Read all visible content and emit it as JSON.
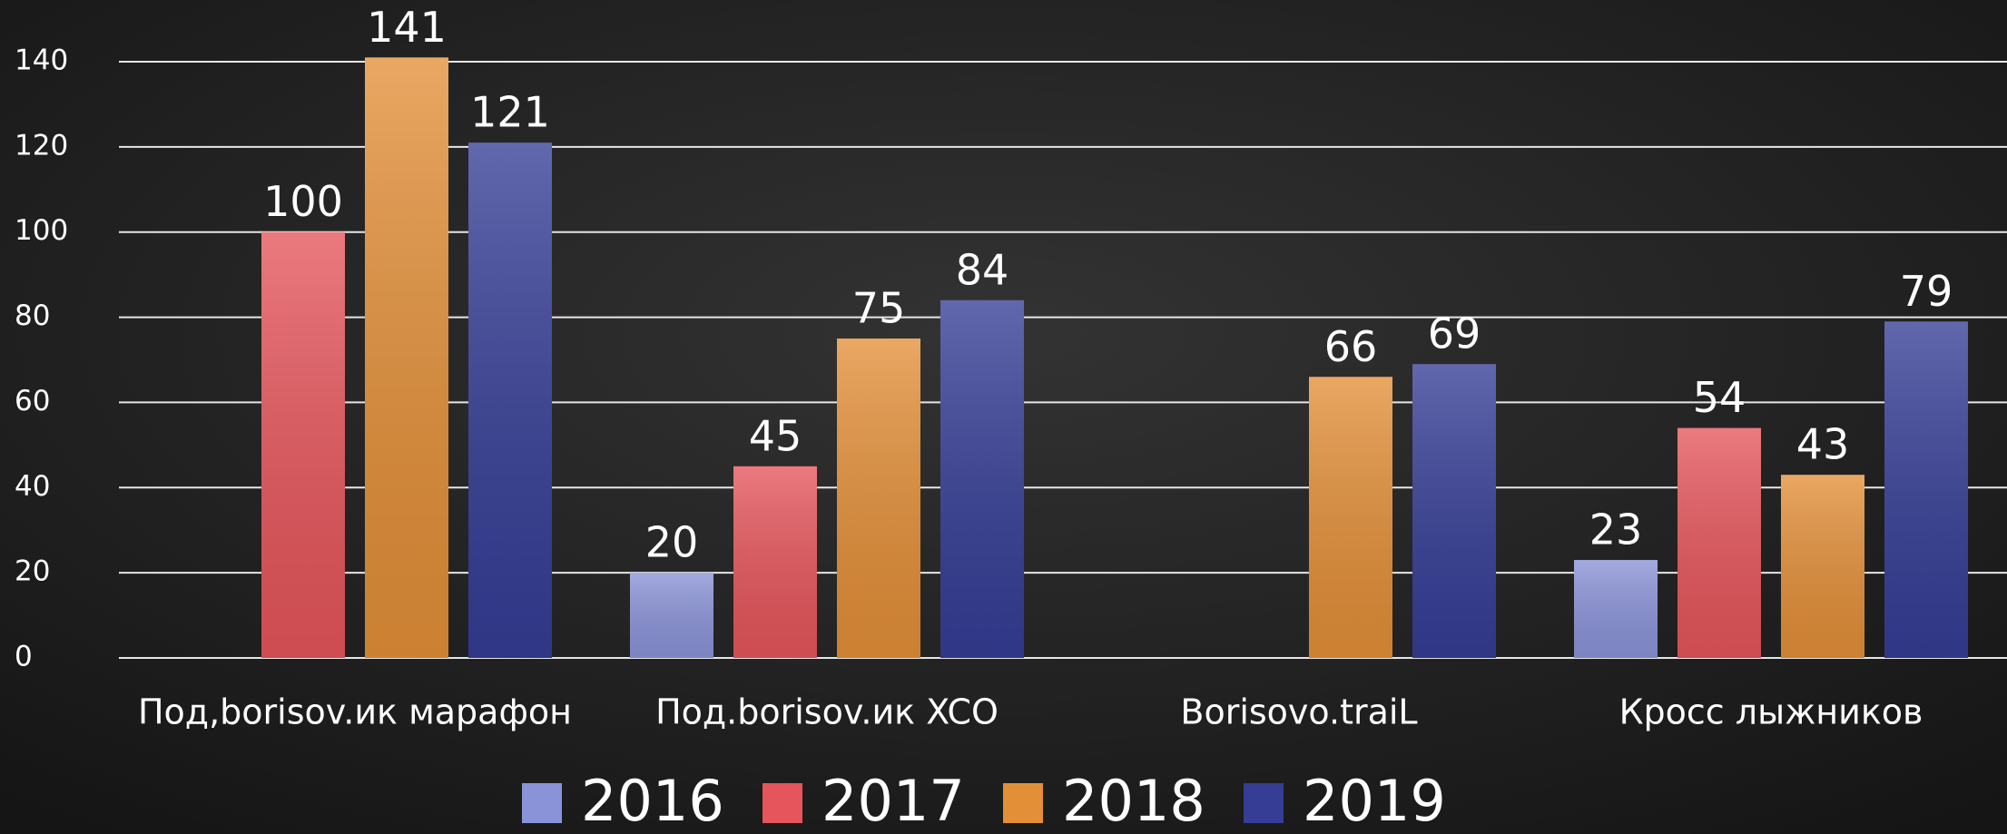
{
  "chart_data": {
    "type": "bar",
    "categories": [
      "Под,borisov.ик марафон",
      "Под.borisov.ик XCO",
      "Borisovo.traiL",
      "Кросс лыжников"
    ],
    "series": [
      {
        "name": "2016",
        "color": "#8a93d8",
        "values": [
          null,
          20,
          null,
          23
        ]
      },
      {
        "name": "2017",
        "color": "#e5555b",
        "values": [
          100,
          45,
          null,
          54
        ]
      },
      {
        "name": "2018",
        "color": "#e38f38",
        "values": [
          141,
          75,
          66,
          43
        ]
      },
      {
        "name": "2019",
        "color": "#353d95",
        "values": [
          121,
          84,
          69,
          79
        ]
      }
    ],
    "ylim": [
      0,
      140
    ],
    "yticks": [
      0,
      20,
      40,
      60,
      80,
      100,
      120,
      140
    ],
    "grid": true,
    "legend": "bottom"
  }
}
